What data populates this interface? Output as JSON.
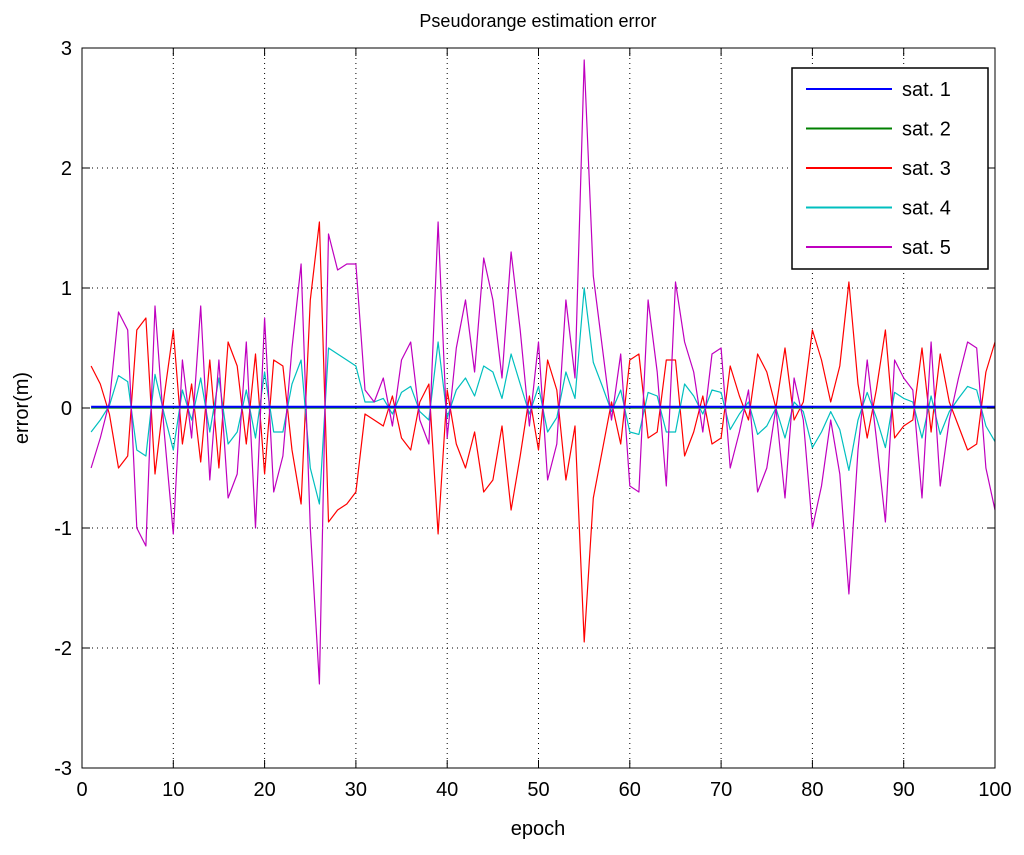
{
  "chart_data": {
    "type": "line",
    "title": "Pseudorange estimation error",
    "xlabel": "epoch",
    "ylabel": "error(m)",
    "xlim": [
      0,
      100
    ],
    "ylim": [
      -3,
      3
    ],
    "x_ticks": [
      0,
      10,
      20,
      30,
      40,
      50,
      60,
      70,
      80,
      90,
      100
    ],
    "y_ticks": [
      -3,
      -2,
      -1,
      0,
      1,
      2,
      3
    ],
    "x_tick_labels": [
      "0",
      "10",
      "20",
      "30",
      "40",
      "50",
      "60",
      "70",
      "80",
      "90",
      "100"
    ],
    "y_tick_labels": [
      "-3",
      "-2",
      "-1",
      "0",
      "1",
      "2",
      "3"
    ],
    "grid": true,
    "legend_position": "top-right",
    "x": [
      1,
      2,
      3,
      4,
      5,
      6,
      7,
      8,
      9,
      10,
      11,
      12,
      13,
      14,
      15,
      16,
      17,
      18,
      19,
      20,
      21,
      22,
      23,
      24,
      25,
      26,
      27,
      28,
      29,
      30,
      31,
      32,
      33,
      34,
      35,
      36,
      37,
      38,
      39,
      40,
      41,
      42,
      43,
      44,
      45,
      46,
      47,
      48,
      49,
      50,
      51,
      52,
      53,
      54,
      55,
      56,
      57,
      58,
      59,
      60,
      61,
      62,
      63,
      64,
      65,
      66,
      67,
      68,
      69,
      70,
      71,
      72,
      73,
      74,
      75,
      76,
      77,
      78,
      79,
      80,
      81,
      82,
      83,
      84,
      85,
      86,
      87,
      88,
      89,
      90,
      91,
      92,
      93,
      94,
      95,
      96,
      97,
      98,
      99,
      100
    ],
    "series": [
      {
        "name": "sat. 1",
        "color": "#0000ff",
        "values": [
          0.01,
          0.01,
          0.01,
          0.01,
          0.01,
          0.01,
          0.01,
          0.01,
          0.01,
          0.01,
          0.01,
          0.01,
          0.01,
          0.01,
          0.01,
          0.01,
          0.01,
          0.01,
          0.01,
          0.01,
          0.01,
          0.01,
          0.01,
          0.01,
          0.01,
          0.01,
          0.01,
          0.01,
          0.01,
          0.01,
          0.01,
          0.01,
          0.01,
          0.01,
          0.01,
          0.01,
          0.01,
          0.01,
          0.01,
          0.01,
          0.01,
          0.01,
          0.01,
          0.01,
          0.01,
          0.01,
          0.01,
          0.01,
          0.01,
          0.01,
          0.01,
          0.01,
          0.01,
          0.01,
          0.01,
          0.01,
          0.01,
          0.01,
          0.01,
          0.01,
          0.01,
          0.01,
          0.01,
          0.01,
          0.01,
          0.01,
          0.01,
          0.01,
          0.01,
          0.01,
          0.01,
          0.01,
          0.01,
          0.01,
          0.01,
          0.01,
          0.01,
          0.01,
          0.01,
          0.01,
          0.01,
          0.01,
          0.01,
          0.01,
          0.01,
          0.01,
          0.01,
          0.01,
          0.01,
          0.01,
          0.01,
          0.01,
          0.01,
          0.01,
          0.01,
          0.01,
          0.01,
          0.01,
          0.01,
          0.01
        ]
      },
      {
        "name": "sat. 2",
        "color": "#008000",
        "values": [
          0,
          0,
          0,
          0,
          0,
          0,
          0,
          0,
          0,
          0,
          0,
          0,
          0,
          0,
          0,
          0,
          0,
          0,
          0,
          0,
          0,
          0,
          0,
          0,
          0,
          0,
          0,
          0,
          0,
          0,
          0,
          0,
          0,
          0,
          0,
          0,
          0,
          0,
          0,
          0,
          0,
          0,
          0,
          0,
          0,
          0,
          0,
          0,
          0,
          0,
          0,
          0,
          0,
          0,
          0,
          0,
          0,
          0,
          0,
          0,
          0,
          0,
          0,
          0,
          0,
          0,
          0,
          0,
          0,
          0,
          0,
          0,
          0,
          0,
          0,
          0,
          0,
          0,
          0,
          0,
          0,
          0,
          0,
          0,
          0,
          0,
          0,
          0,
          0,
          0,
          0,
          0,
          0,
          0,
          0,
          0,
          0,
          0,
          0,
          0
        ]
      },
      {
        "name": "sat. 3",
        "color": "#ff0000",
        "values": [
          0.35,
          0.2,
          -0.05,
          -0.5,
          -0.4,
          0.65,
          0.75,
          -0.55,
          0.1,
          0.65,
          -0.3,
          0.2,
          -0.45,
          0.4,
          -0.5,
          0.55,
          0.35,
          -0.3,
          0.45,
          -0.55,
          0.4,
          0.35,
          -0.35,
          -0.8,
          0.9,
          1.55,
          -0.95,
          -0.85,
          -0.8,
          -0.7,
          -0.05,
          -0.1,
          -0.15,
          0.1,
          -0.25,
          -0.35,
          0.05,
          0.2,
          -1.05,
          0.15,
          -0.3,
          -0.5,
          -0.2,
          -0.7,
          -0.6,
          -0.15,
          -0.85,
          -0.4,
          0.1,
          -0.35,
          0.4,
          0.15,
          -0.6,
          -0.15,
          -1.95,
          -0.75,
          -0.35,
          0.05,
          -0.3,
          0.4,
          0.45,
          -0.25,
          -0.2,
          0.4,
          0.4,
          -0.4,
          -0.2,
          0.1,
          -0.3,
          -0.25,
          0.35,
          0.1,
          -0.1,
          0.45,
          0.3,
          0.0,
          0.5,
          -0.1,
          0.05,
          0.65,
          0.4,
          0.05,
          0.35,
          1.05,
          0.2,
          -0.25,
          0.15,
          0.65,
          -0.25,
          -0.15,
          -0.1,
          0.5,
          -0.2,
          0.45,
          0.05,
          -0.15,
          -0.35,
          -0.3,
          0.3,
          0.55
        ]
      },
      {
        "name": "sat. 4",
        "color": "#00bfbf",
        "values": [
          -0.2,
          -0.1,
          0.02,
          0.27,
          0.22,
          -0.35,
          -0.4,
          0.28,
          -0.05,
          -0.35,
          0.15,
          -0.1,
          0.25,
          -0.2,
          0.25,
          -0.3,
          -0.2,
          0.15,
          -0.25,
          0.3,
          -0.2,
          -0.2,
          0.2,
          0.4,
          -0.5,
          -0.8,
          0.5,
          0.45,
          0.4,
          0.35,
          0.05,
          0.05,
          0.08,
          -0.05,
          0.13,
          0.18,
          -0.03,
          -0.1,
          0.55,
          -0.08,
          0.15,
          0.25,
          0.1,
          0.35,
          0.3,
          0.08,
          0.45,
          0.2,
          -0.05,
          0.18,
          -0.2,
          -0.08,
          0.3,
          0.08,
          1.0,
          0.38,
          0.18,
          -0.03,
          0.15,
          -0.2,
          -0.22,
          0.13,
          0.1,
          -0.2,
          -0.2,
          0.2,
          0.1,
          -0.05,
          0.15,
          0.13,
          -0.18,
          -0.05,
          0.05,
          -0.22,
          -0.15,
          0.0,
          -0.25,
          0.05,
          -0.03,
          -0.33,
          -0.2,
          -0.03,
          -0.18,
          -0.52,
          -0.1,
          0.13,
          -0.08,
          -0.33,
          0.13,
          0.08,
          0.05,
          -0.25,
          0.1,
          -0.22,
          -0.03,
          0.08,
          0.18,
          0.15,
          -0.15,
          -0.28
        ]
      },
      {
        "name": "sat. 5",
        "color": "#bf00bf",
        "values": [
          -0.5,
          -0.25,
          0.05,
          0.8,
          0.65,
          -1.0,
          -1.15,
          0.85,
          -0.2,
          -1.05,
          0.4,
          -0.25,
          0.85,
          -0.6,
          0.4,
          -0.75,
          -0.55,
          0.55,
          -1.0,
          0.75,
          -0.7,
          -0.4,
          0.5,
          1.2,
          -1.0,
          -2.3,
          1.45,
          1.15,
          1.2,
          1.2,
          0.15,
          0.05,
          0.25,
          -0.15,
          0.4,
          0.55,
          -0.1,
          -0.3,
          1.55,
          -0.25,
          0.5,
          0.9,
          0.3,
          1.25,
          0.9,
          0.25,
          1.3,
          0.65,
          -0.15,
          0.55,
          -0.6,
          -0.3,
          0.9,
          0.25,
          2.9,
          1.1,
          0.5,
          -0.1,
          0.45,
          -0.65,
          -0.7,
          0.9,
          0.3,
          -0.65,
          1.05,
          0.55,
          0.3,
          -0.2,
          0.45,
          0.5,
          -0.5,
          -0.2,
          0.15,
          -0.7,
          -0.5,
          0.0,
          -0.75,
          0.25,
          -0.1,
          -1.0,
          -0.65,
          -0.1,
          -0.55,
          -1.55,
          -0.35,
          0.4,
          -0.25,
          -0.95,
          0.4,
          0.25,
          0.15,
          -0.75,
          0.55,
          -0.65,
          -0.1,
          0.25,
          0.55,
          0.5,
          -0.5,
          -0.85
        ]
      }
    ]
  }
}
